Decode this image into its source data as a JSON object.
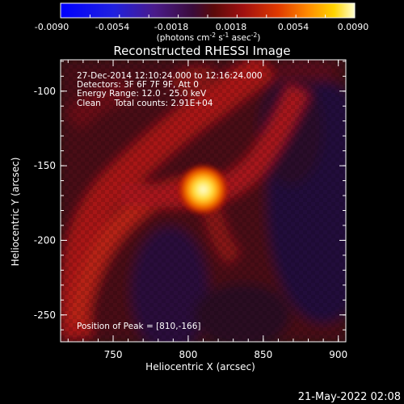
{
  "colorbar": {
    "ticks": [
      "-0.0090",
      "-0.0054",
      "-0.0018",
      "0.0018",
      "0.0054",
      "0.0090"
    ],
    "unit_prefix": "(photons cm",
    "unit_exp1": "-2",
    "unit_mid": " s",
    "unit_exp2": "-1",
    "unit_mid2": " asec",
    "unit_exp3": "-2",
    "unit_suffix": ")"
  },
  "title": "Reconstructed RHESSI Image",
  "info": {
    "line1": "27-Dec-2014 12:10:24.000 to 12:16:24.000",
    "line2": "Detectors: 3F 6F 7F 9F, Att 0",
    "line3": "Energy Range: 12.0 - 25.0 keV",
    "line4": "Clean     Total counts: 2.91E+04"
  },
  "peak_label": "Position of Peak = [810,-166]",
  "x_axis": {
    "label": "Heliocentric X (arcsec)",
    "ticks": [
      "750",
      "800",
      "850",
      "900"
    ],
    "range": [
      715,
      905
    ]
  },
  "y_axis": {
    "label": "Heliocentric Y (arcsec)",
    "ticks": [
      "-100",
      "-150",
      "-200",
      "-250"
    ],
    "range": [
      -268,
      -79
    ]
  },
  "peak": {
    "x": 810,
    "y": -166
  },
  "footer_date": "21-May-2022 02:08"
}
